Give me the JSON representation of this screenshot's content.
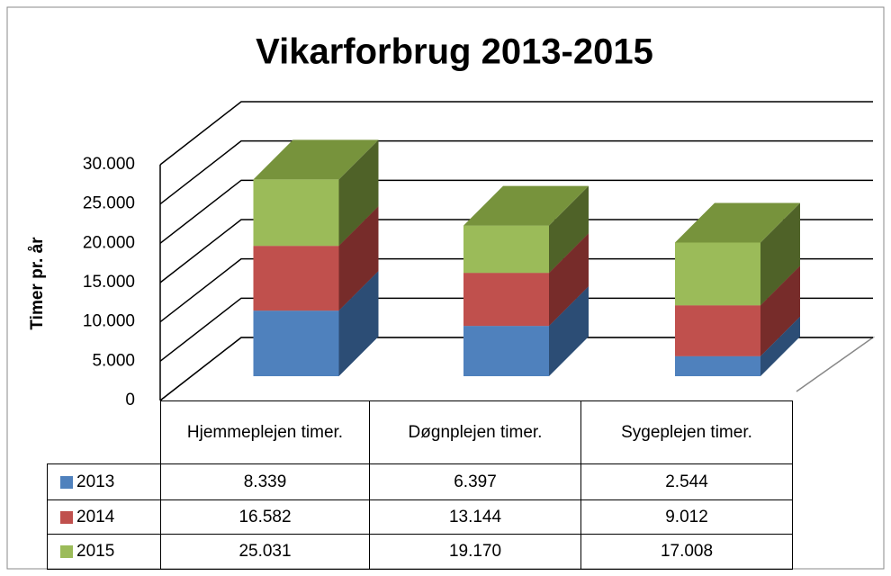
{
  "chart_data": {
    "type": "bar",
    "title": "Vikarforbrug 2013-2015",
    "y_label": "Timer pr. år",
    "categories": [
      "Hjemmeplejen timer.",
      "Døgnplejen timer.",
      "Sygeplejen timer."
    ],
    "series": [
      {
        "name": "2013",
        "color": "#4f81bd",
        "side_color": "#2c4d75",
        "top_color": "#4473aa",
        "values": [
          8339,
          6397,
          2544
        ],
        "value_labels": [
          "8.339",
          "6.397",
          "2.544"
        ]
      },
      {
        "name": "2014",
        "color": "#c0504d",
        "side_color": "#772c2a",
        "top_color": "#a04543",
        "values": [
          16582,
          13144,
          9012
        ],
        "value_labels": [
          "16.582",
          "13.144",
          "9.012"
        ]
      },
      {
        "name": "2015",
        "color": "#9bbb59",
        "side_color": "#4f6228",
        "top_color": "#77933c",
        "values": [
          25031,
          19170,
          17008
        ],
        "value_labels": [
          "25.031",
          "19.170",
          "17.008"
        ]
      }
    ],
    "ylim": [
      0,
      30000
    ],
    "yticks": [
      {
        "value": 0,
        "label": "0"
      },
      {
        "value": 5000,
        "label": "5.000"
      },
      {
        "value": 10000,
        "label": "10.000"
      },
      {
        "value": 15000,
        "label": "15.000"
      },
      {
        "value": 20000,
        "label": "20.000"
      },
      {
        "value": 25000,
        "label": "25.000"
      },
      {
        "value": 30000,
        "label": "30.000"
      }
    ],
    "grid": true
  }
}
